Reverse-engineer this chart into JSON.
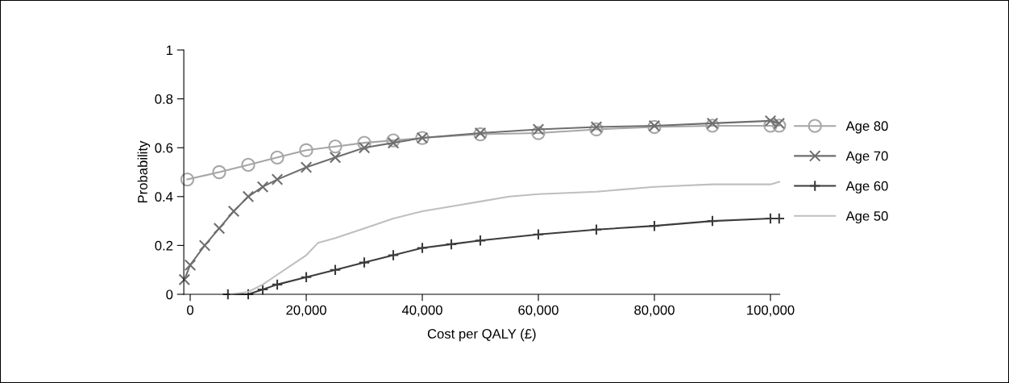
{
  "chart_data": {
    "type": "line",
    "xlabel": "Cost per QALY (£)",
    "ylabel": "Probability",
    "xlim": [
      -1100,
      101600
    ],
    "ylim": [
      0,
      1
    ],
    "xticks": [
      0,
      {
        "value": 20000,
        "label": "20,000"
      },
      {
        "value": 40000,
        "label": "40,000"
      },
      {
        "value": 60000,
        "label": "60,000"
      },
      {
        "value": 80000,
        "label": "80,000"
      },
      {
        "value": 100000,
        "label": "100,000"
      }
    ],
    "yticks": [
      0,
      0.2,
      0.4,
      0.6,
      0.8,
      1
    ],
    "grid": false,
    "legend": "right",
    "series": [
      {
        "name": "Age 80",
        "color": "#a6a6a6",
        "marker": "circle",
        "x": [
          -500,
          5000,
          10000,
          15000,
          20000,
          25000,
          30000,
          35000,
          40000,
          50000,
          60000,
          70000,
          80000,
          90000,
          100000,
          101500
        ],
        "values": [
          0.47,
          0.5,
          0.53,
          0.56,
          0.59,
          0.605,
          0.62,
          0.63,
          0.64,
          0.655,
          0.66,
          0.675,
          0.685,
          0.69,
          0.69,
          0.69
        ]
      },
      {
        "name": "Age 70",
        "color": "#6e6e6e",
        "marker": "cross",
        "x": [
          -1000,
          0,
          2500,
          5000,
          7500,
          10000,
          12500,
          15000,
          20000,
          25000,
          30000,
          35000,
          40000,
          50000,
          60000,
          70000,
          80000,
          90000,
          100000,
          101500
        ],
        "values": [
          0.06,
          0.12,
          0.2,
          0.27,
          0.34,
          0.4,
          0.44,
          0.47,
          0.52,
          0.56,
          0.6,
          0.62,
          0.64,
          0.66,
          0.675,
          0.685,
          0.69,
          0.7,
          0.71,
          0.7
        ]
      },
      {
        "name": "Age 60",
        "color": "#3c3c3c",
        "marker": "plus",
        "x": [
          6500,
          10000,
          12500,
          15000,
          20000,
          25000,
          30000,
          35000,
          40000,
          45000,
          50000,
          60000,
          70000,
          80000,
          90000,
          100000,
          101500
        ],
        "values": [
          0,
          0,
          0.02,
          0.04,
          0.07,
          0.1,
          0.13,
          0.16,
          0.19,
          0.205,
          0.22,
          0.245,
          0.265,
          0.28,
          0.3,
          0.31,
          0.31
        ]
      },
      {
        "name": "Age 50",
        "color": "#bfbfbf",
        "marker": "none",
        "x": [
          7000,
          10000,
          12500,
          15000,
          17500,
          20000,
          22000,
          25000,
          30000,
          35000,
          40000,
          45000,
          50000,
          55000,
          60000,
          70000,
          80000,
          90000,
          100000,
          101500
        ],
        "values": [
          0,
          0.01,
          0.04,
          0.08,
          0.12,
          0.16,
          0.21,
          0.23,
          0.27,
          0.31,
          0.34,
          0.36,
          0.38,
          0.4,
          0.41,
          0.42,
          0.44,
          0.45,
          0.45,
          0.46
        ]
      }
    ]
  }
}
